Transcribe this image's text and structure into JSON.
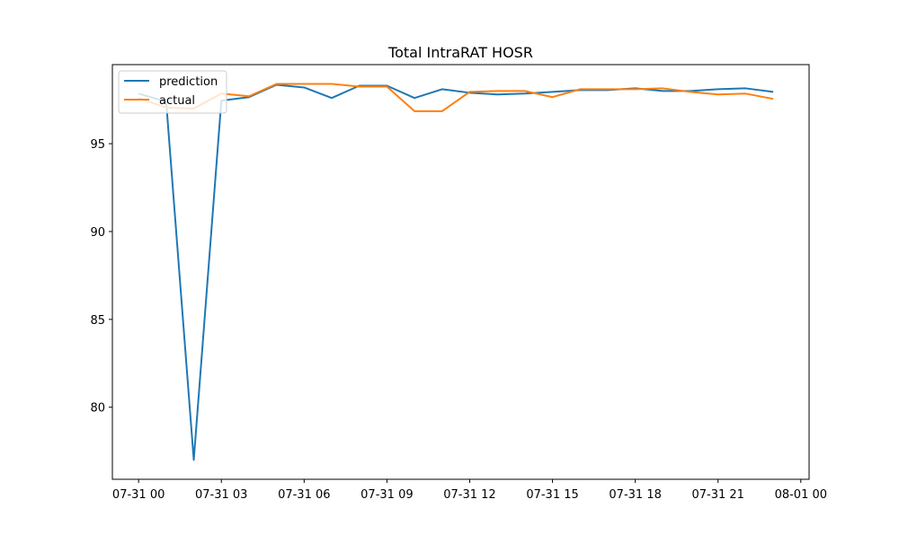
{
  "chart_data": {
    "type": "line",
    "title": "Total IntraRAT HOSR",
    "xlabel": "",
    "ylabel": "",
    "x_ticks": [
      "07-31 00",
      "07-31 03",
      "07-31 06",
      "07-31 09",
      "07-31 12",
      "07-31 15",
      "07-31 18",
      "07-31 21",
      "08-01 00"
    ],
    "y_ticks": [
      "80",
      "85",
      "90",
      "95"
    ],
    "x": [
      "07-31 00:00",
      "07-31 01:00",
      "07-31 02:00",
      "07-31 03:00",
      "07-31 04:00",
      "07-31 05:00",
      "07-31 06:00",
      "07-31 07:00",
      "07-31 08:00",
      "07-31 09:00",
      "07-31 10:00",
      "07-31 11:00",
      "07-31 12:00",
      "07-31 13:00",
      "07-31 14:00",
      "07-31 15:00",
      "07-31 16:00",
      "07-31 17:00",
      "07-31 18:00",
      "07-31 19:00",
      "07-31 20:00",
      "07-31 21:00",
      "07-31 22:00",
      "07-31 23:00"
    ],
    "xlim": [
      "07-30 23:03",
      "08-01 00:18"
    ],
    "ylim": [
      75.9,
      99.5
    ],
    "legend_position": "top-left",
    "grid": false,
    "series": [
      {
        "name": "prediction",
        "color": "#1f77b4",
        "values": [
          97.85,
          97.4,
          77.0,
          97.45,
          97.65,
          98.35,
          98.2,
          97.6,
          98.3,
          98.3,
          97.6,
          98.1,
          97.9,
          97.8,
          97.85,
          97.95,
          98.05,
          98.05,
          98.15,
          98.0,
          98.0,
          98.1,
          98.15,
          97.95
        ]
      },
      {
        "name": "actual",
        "color": "#ff7f0e",
        "values": [
          97.6,
          97.05,
          97.0,
          97.85,
          97.7,
          98.4,
          98.4,
          98.4,
          98.25,
          98.25,
          96.85,
          96.85,
          97.95,
          98.0,
          98.0,
          97.65,
          98.1,
          98.1,
          98.1,
          98.15,
          97.95,
          97.8,
          97.85,
          97.55
        ]
      }
    ]
  }
}
